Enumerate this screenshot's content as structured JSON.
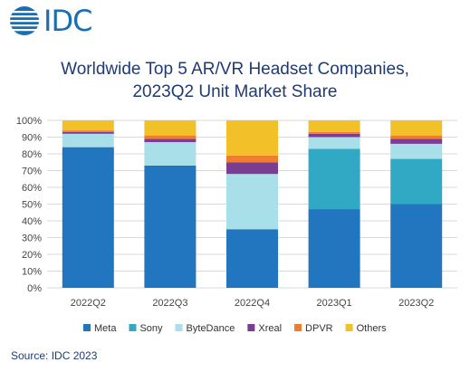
{
  "logo": {
    "text": "IDC"
  },
  "source": "Source: IDC 2023",
  "colors": {
    "Meta": "#2276bf",
    "Sony": "#32a9c4",
    "ByteDance": "#a8dfe8",
    "Xreal": "#7b3c93",
    "DPVR": "#ee7d2e",
    "Others": "#f2c12a"
  },
  "chart_data": {
    "type": "bar",
    "stacked": true,
    "title": "Worldwide Top 5 AR/VR Headset Companies,",
    "subtitle": "2023Q2 Unit Market Share",
    "categories": [
      "2022Q2",
      "2022Q3",
      "2022Q4",
      "2023Q1",
      "2023Q2"
    ],
    "yticks": [
      "0%",
      "10%",
      "20%",
      "30%",
      "40%",
      "50%",
      "60%",
      "70%",
      "80%",
      "90%",
      "100%"
    ],
    "ylim": [
      0,
      100
    ],
    "grid": true,
    "legend": "bottom",
    "series": [
      {
        "name": "Meta",
        "values": [
          84,
          73,
          35,
          47,
          50
        ]
      },
      {
        "name": "Sony",
        "values": [
          0,
          0,
          0,
          36,
          27
        ]
      },
      {
        "name": "ByteDance",
        "values": [
          8,
          14,
          33,
          7,
          9
        ]
      },
      {
        "name": "Xreal",
        "values": [
          1,
          2,
          7,
          2,
          3
        ]
      },
      {
        "name": "DPVR",
        "values": [
          1,
          2,
          4,
          1,
          2
        ]
      },
      {
        "name": "Others",
        "values": [
          6,
          9,
          21,
          7,
          9
        ]
      }
    ]
  }
}
